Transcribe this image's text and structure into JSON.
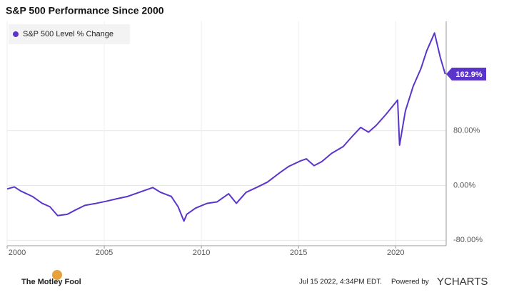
{
  "chart_data": {
    "type": "line",
    "title": "S&P 500 Performance Since 2000",
    "x": [
      2000.0,
      2000.37,
      2000.7,
      2001.3,
      2001.8,
      2002.2,
      2002.6,
      2003.1,
      2003.5,
      2004.0,
      2004.6,
      2005.1,
      2005.7,
      2006.2,
      2006.8,
      2007.5,
      2007.9,
      2008.45,
      2008.8,
      2009.1,
      2009.25,
      2009.7,
      2010.3,
      2010.8,
      2011.4,
      2011.8,
      2012.3,
      2012.9,
      2013.4,
      2014.0,
      2014.5,
      2015.1,
      2015.4,
      2015.8,
      2016.2,
      2016.7,
      2017.3,
      2017.8,
      2018.2,
      2018.6,
      2019.0,
      2019.5,
      2020.1,
      2020.2,
      2020.5,
      2020.9,
      2021.3,
      2021.6,
      2022.0,
      2022.3,
      2022.55
    ],
    "series": [
      {
        "name": "S&P 500 Level % Change",
        "color": "#5b35c9",
        "values": [
          -5,
          -2,
          -8,
          -16,
          -26,
          -31,
          -44,
          -42,
          -36,
          -29,
          -26,
          -23,
          -19,
          -16,
          -10,
          -3,
          -10,
          -16,
          -31,
          -52,
          -42,
          -33,
          -26,
          -24,
          -12,
          -26,
          -10,
          -2,
          5,
          18,
          28,
          36,
          39,
          29,
          35,
          47,
          57,
          73,
          85,
          78,
          88,
          104,
          125,
          59,
          109,
          145,
          171,
          197,
          223,
          187,
          162.9
        ],
        "value_labels": [
          null,
          null,
          null,
          null,
          null,
          null,
          null,
          null,
          null,
          null,
          null,
          null,
          null,
          null,
          null,
          null,
          null,
          null,
          null,
          null,
          null,
          null,
          null,
          null,
          null,
          null,
          null,
          null,
          null,
          null,
          null,
          null,
          null,
          null,
          null,
          null,
          null,
          null,
          null,
          null,
          null,
          null,
          null,
          null,
          null,
          null,
          null,
          null,
          null,
          null,
          "162.9%"
        ]
      }
    ],
    "xlim": [
      2000,
      2022.6
    ],
    "xticks": [
      2000,
      2005,
      2010,
      2015,
      2020
    ],
    "ylim": [
      -88,
      240
    ],
    "yticks": [
      {
        "value": -80,
        "label": "-80.00%"
      },
      {
        "value": 0,
        "label": "0.00%"
      },
      {
        "value": 80,
        "label": "80.00%"
      }
    ],
    "grid": true,
    "legend": "upper left",
    "footer": {
      "brand": "The Motley Fool",
      "timestamp": "Jul 15 2022, 4:34PM EDT.",
      "powered": "Powered by",
      "provider": "YCHARTS"
    }
  }
}
